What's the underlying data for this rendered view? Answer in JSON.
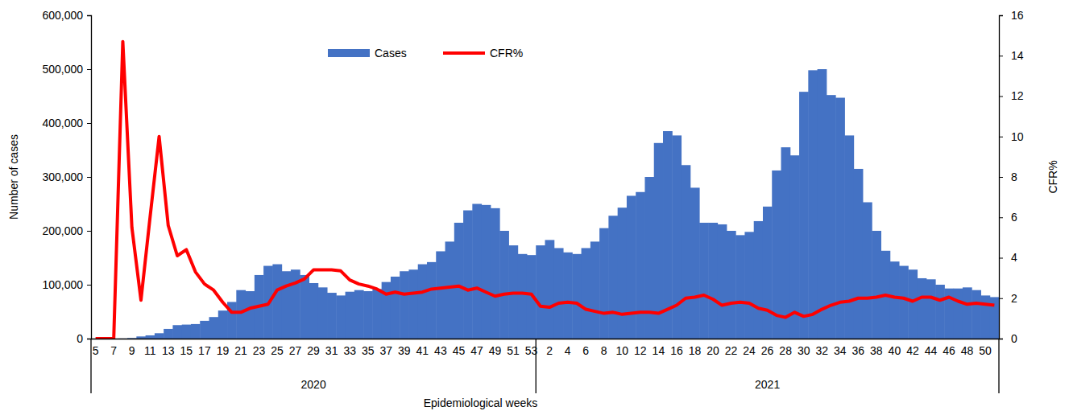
{
  "chart_data": {
    "type": "bar",
    "x_label": "Epidemiological weeks",
    "y_label": "Number of cases",
    "y2_label": "CFR%",
    "categories": [
      "5",
      null,
      "7",
      null,
      "9",
      null,
      "11",
      null,
      "13",
      null,
      "15",
      null,
      "17",
      null,
      "19",
      null,
      "21",
      null,
      "23",
      null,
      "25",
      null,
      "27",
      null,
      "29",
      null,
      "31",
      null,
      "33",
      null,
      "35",
      null,
      "37",
      null,
      "39",
      null,
      "41",
      null,
      "43",
      null,
      "45",
      null,
      "47",
      null,
      "49",
      null,
      "51",
      null,
      "53",
      null,
      "2",
      null,
      "4",
      null,
      "6",
      null,
      "8",
      null,
      "10",
      null,
      "12",
      null,
      "14",
      null,
      "16",
      null,
      "18",
      null,
      "20",
      null,
      "22",
      null,
      "24",
      null,
      "26",
      null,
      "28",
      null,
      "30",
      null,
      "32",
      null,
      "34",
      null,
      "36",
      null,
      "38",
      null,
      "40",
      null,
      "42",
      null,
      "44",
      null,
      "46",
      null,
      "48",
      null,
      "50",
      null
    ],
    "x_groups": [
      {
        "label": "2020",
        "count": 49
      },
      {
        "label": "2021",
        "count": 51
      }
    ],
    "series": [
      {
        "name": "Cases",
        "type": "bar",
        "color": "#4472c4",
        "values": [
          0,
          0,
          0,
          200,
          1000,
          4000,
          6000,
          10000,
          18000,
          25000,
          26000,
          27000,
          33000,
          40000,
          52000,
          68000,
          90000,
          88000,
          118000,
          135000,
          138000,
          125000,
          128000,
          118000,
          103000,
          95000,
          85000,
          80000,
          87000,
          90000,
          88000,
          92000,
          105000,
          115000,
          125000,
          128000,
          138000,
          142000,
          162000,
          180000,
          215000,
          238000,
          250000,
          248000,
          242000,
          200000,
          173000,
          157000,
          155000,
          173000,
          183000,
          168000,
          160000,
          157000,
          168000,
          180000,
          205000,
          228000,
          243000,
          265000,
          272000,
          300000,
          363000,
          385000,
          377000,
          322000,
          280000,
          215000,
          215000,
          212000,
          200000,
          192000,
          198000,
          218000,
          245000,
          312000,
          355000,
          340000,
          458000,
          498000,
          500000,
          452000,
          447000,
          377000,
          315000,
          253000,
          200000,
          163000,
          143000,
          135000,
          128000,
          112000,
          110000,
          100000,
          93000,
          93000,
          95000,
          90000,
          80000,
          77000
        ]
      },
      {
        "name": "CFR%",
        "type": "line",
        "color": "#ff0000",
        "axis": "y2",
        "values": [
          0,
          0,
          0,
          14.7,
          5.5,
          1.9,
          6.0,
          10.0,
          5.6,
          4.1,
          4.4,
          3.3,
          2.7,
          2.4,
          1.8,
          1.3,
          1.3,
          1.5,
          1.6,
          1.7,
          2.4,
          2.6,
          2.75,
          2.95,
          3.4,
          3.4,
          3.4,
          3.35,
          2.9,
          2.7,
          2.6,
          2.45,
          2.2,
          2.3,
          2.2,
          2.25,
          2.3,
          2.45,
          2.5,
          2.55,
          2.6,
          2.4,
          2.5,
          2.3,
          2.1,
          2.2,
          2.25,
          2.25,
          2.2,
          1.6,
          1.55,
          1.75,
          1.8,
          1.75,
          1.45,
          1.35,
          1.25,
          1.3,
          1.2,
          1.25,
          1.3,
          1.3,
          1.25,
          1.45,
          1.65,
          2.0,
          2.05,
          2.15,
          1.95,
          1.65,
          1.75,
          1.8,
          1.75,
          1.5,
          1.4,
          1.15,
          1.05,
          1.3,
          1.1,
          1.2,
          1.45,
          1.65,
          1.8,
          1.85,
          2.0,
          2.0,
          2.05,
          2.15,
          2.05,
          2.0,
          1.85,
          2.05,
          2.05,
          1.9,
          2.05,
          1.85,
          1.7,
          1.75,
          1.7,
          1.65
        ]
      }
    ],
    "ylim": [
      0,
      600000
    ],
    "yticks": [
      0,
      {
        "value": 100000,
        "label": "100,000"
      },
      {
        "value": 200000,
        "label": "200,000"
      },
      {
        "value": 300000,
        "label": "300,000"
      },
      {
        "value": 400000,
        "label": "400,000"
      },
      {
        "value": 500000,
        "label": "500,000"
      },
      {
        "value": 600000,
        "label": "600,000"
      }
    ],
    "y2lim": [
      0,
      16
    ],
    "y2ticks": [
      0,
      2,
      4,
      6,
      8,
      10,
      12,
      14,
      16
    ],
    "legend": "top",
    "grid": false
  }
}
